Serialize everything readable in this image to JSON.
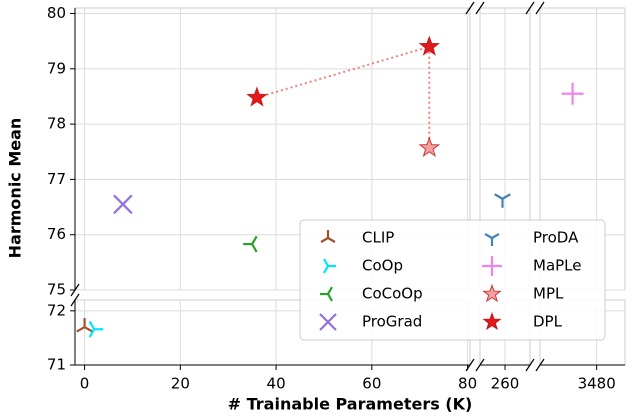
{
  "chart_data": {
    "type": "scatter",
    "x_label": "# Trainable Parameters (K)",
    "y_label": "Harmonic Mean",
    "grid": true,
    "legend": "lower right",
    "x_panels": [
      {
        "xlim": [
          -2,
          80.5
        ],
        "xticks": [
          0,
          20,
          40,
          60,
          80
        ]
      },
      {
        "xlim": [
          240,
          280
        ],
        "xticks": [
          260
        ]
      },
      {
        "xlim": [
          3400,
          3520
        ],
        "xticks": [
          3480
        ]
      }
    ],
    "y_panels": [
      {
        "ylim": [
          75,
          80.1
        ],
        "yticks": [
          75,
          76,
          77,
          78,
          79,
          80
        ]
      },
      {
        "ylim": [
          71,
          72.2
        ],
        "yticks": [
          71,
          72
        ]
      }
    ],
    "connector_color": "#f08080",
    "series": [
      {
        "name": "CLIP",
        "color": "#a0522d",
        "marker": "tri_up",
        "x": [
          0
        ],
        "values": [
          71.7
        ]
      },
      {
        "name": "CoOp",
        "color": "#00e5ff",
        "marker": "tri_right",
        "x": [
          2
        ],
        "values": [
          71.66
        ]
      },
      {
        "name": "CoCoOp",
        "color": "#2ca02c",
        "marker": "tri_left",
        "x": [
          35
        ],
        "values": [
          75.83
        ]
      },
      {
        "name": "ProGrad",
        "color": "#9370db",
        "marker": "x",
        "x": [
          8
        ],
        "values": [
          76.55
        ]
      },
      {
        "name": "ProDA",
        "color": "#4682b4",
        "marker": "tri_down",
        "x": [
          258
        ],
        "values": [
          76.65
        ]
      },
      {
        "name": "MaPLe",
        "color": "#ee82ee",
        "marker": "plus",
        "x": [
          3446
        ],
        "values": [
          78.55
        ]
      },
      {
        "name": "MPL",
        "color": "#f4a0a0",
        "marker": "star",
        "x": [
          72
        ],
        "values": [
          77.57
        ]
      },
      {
        "name": "DPL",
        "color": "#e31a1c",
        "marker": "star",
        "x": [
          36,
          72
        ],
        "values": [
          78.48,
          79.4
        ]
      }
    ]
  }
}
